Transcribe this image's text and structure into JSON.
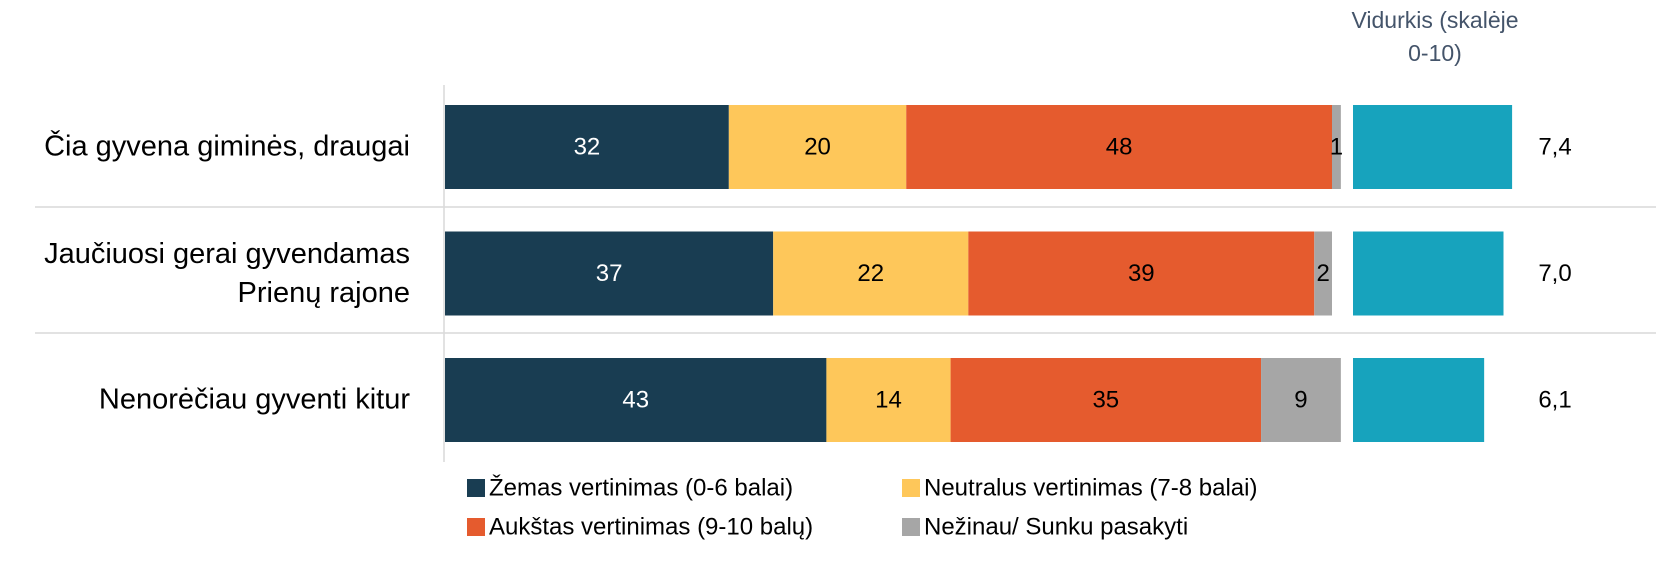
{
  "chart_data": [
    {
      "type": "stacked_bar",
      "categories": [
        "Čia gyvena giminės, draugai",
        "Jaučiuosi gerai gyvendamas Prienų rajone",
        "Nenorėčiau gyventi kitur"
      ],
      "series": [
        {
          "name": "Žemas vertinimas (0-6 balai)",
          "color": "#193d52",
          "values": [
            32,
            37,
            43
          ]
        },
        {
          "name": "Neutralus vertinimas (7-8 balai)",
          "color": "#fec75a",
          "values": [
            20,
            22,
            14
          ]
        },
        {
          "name": "Aukštas vertinimas (9-10 balų)",
          "color": "#e55b2e",
          "values": [
            48,
            39,
            35
          ]
        },
        {
          "name": "Nežinau/ Sunku pasakyti",
          "color": "#a6a6a6",
          "values": [
            1,
            2,
            9
          ]
        }
      ],
      "legend": "bottom"
    },
    {
      "type": "bar",
      "title": "Vidurkis (skalėje 0-10)",
      "values": [
        7.4,
        7.0,
        6.1
      ],
      "value_labels": [
        "7,4",
        "7,0",
        "6,1"
      ],
      "color": "#17a3bd"
    }
  ]
}
